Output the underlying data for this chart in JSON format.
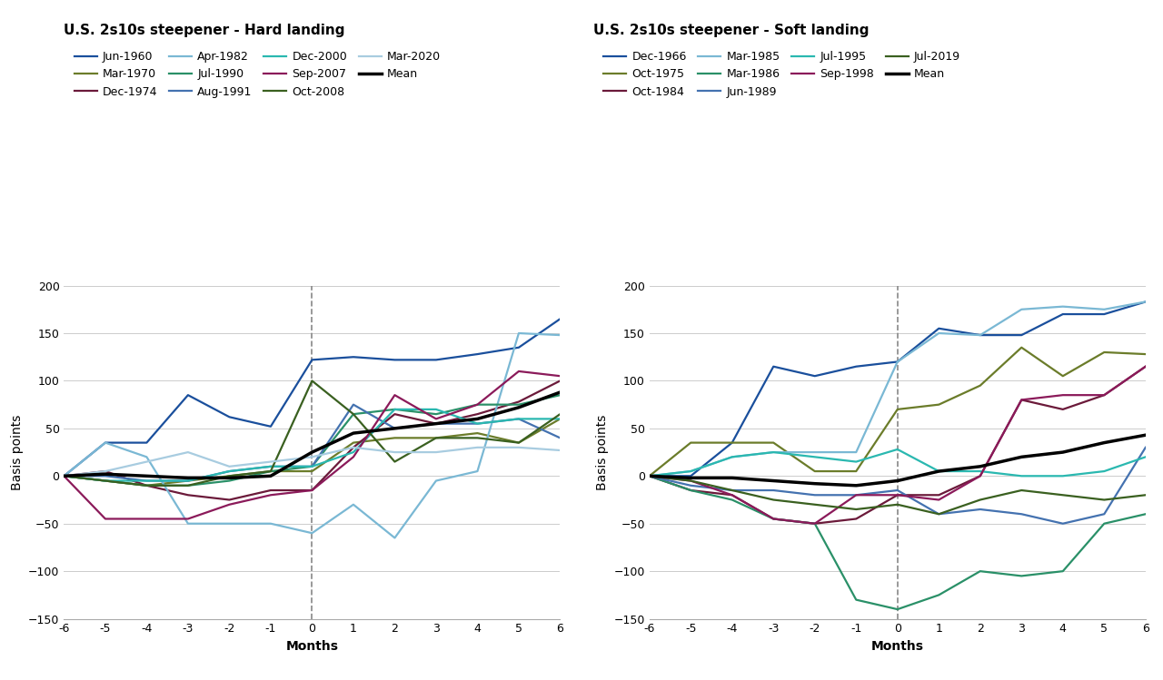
{
  "months": [
    -6,
    -5,
    -4,
    -3,
    -2,
    -1,
    0,
    1,
    2,
    3,
    4,
    5,
    6
  ],
  "hard_landing": {
    "Jun-1960": {
      "color": "#1a4f9c",
      "data": [
        0,
        35,
        35,
        85,
        62,
        52,
        122,
        125,
        122,
        122,
        128,
        135,
        165
      ]
    },
    "Mar-1970": {
      "color": "#6b7c2a",
      "data": [
        0,
        -5,
        -10,
        -5,
        0,
        5,
        5,
        35,
        40,
        40,
        45,
        35,
        60
      ]
    },
    "Dec-1974": {
      "color": "#6b1a3a",
      "data": [
        0,
        5,
        -10,
        -20,
        -25,
        -15,
        -15,
        30,
        65,
        55,
        65,
        78,
        100
      ]
    },
    "Apr-1982": {
      "color": "#7ab8d4",
      "data": [
        0,
        35,
        20,
        -50,
        -50,
        -50,
        -60,
        -30,
        -65,
        -5,
        5,
        150,
        148
      ]
    },
    "Jul-1990": {
      "color": "#2a9068",
      "data": [
        0,
        -5,
        -10,
        -10,
        -5,
        5,
        10,
        65,
        70,
        65,
        75,
        75,
        85
      ]
    },
    "Aug-1991": {
      "color": "#4472b0",
      "data": [
        0,
        0,
        -5,
        -5,
        5,
        10,
        10,
        75,
        50,
        55,
        55,
        60,
        40
      ]
    },
    "Dec-2000": {
      "color": "#2ab8b0",
      "data": [
        0,
        -5,
        -5,
        -5,
        5,
        10,
        10,
        25,
        70,
        70,
        55,
        60,
        60
      ]
    },
    "Sep-2007": {
      "color": "#8b1a5a",
      "data": [
        0,
        -45,
        -45,
        -45,
        -30,
        -20,
        -15,
        20,
        85,
        60,
        75,
        110,
        105
      ]
    },
    "Oct-2008": {
      "color": "#3a6020",
      "data": [
        0,
        -5,
        -10,
        -10,
        0,
        5,
        100,
        65,
        15,
        40,
        40,
        35,
        65
      ]
    },
    "Mar-2020": {
      "color": "#a8cce0",
      "data": [
        0,
        5,
        15,
        25,
        10,
        15,
        20,
        30,
        25,
        25,
        30,
        30,
        27
      ]
    },
    "Mean": {
      "color": "#000000",
      "data": [
        0,
        2,
        0,
        -2,
        -2,
        0,
        25,
        45,
        50,
        55,
        60,
        72,
        88
      ]
    }
  },
  "soft_landing": {
    "Dec-1966": {
      "color": "#1a4f9c",
      "data": [
        0,
        0,
        35,
        115,
        105,
        115,
        120,
        155,
        148,
        148,
        170,
        170,
        183
      ]
    },
    "Oct-1975": {
      "color": "#6b7c2a",
      "data": [
        0,
        35,
        35,
        35,
        5,
        5,
        70,
        75,
        95,
        135,
        105,
        130,
        128
      ]
    },
    "Oct-1984": {
      "color": "#6b1a3a",
      "data": [
        0,
        -15,
        -20,
        -45,
        -50,
        -45,
        -20,
        -20,
        0,
        80,
        70,
        85,
        115
      ]
    },
    "Mar-1985": {
      "color": "#7ab8d4",
      "data": [
        0,
        5,
        20,
        25,
        25,
        25,
        120,
        150,
        148,
        175,
        178,
        175,
        183
      ]
    },
    "Mar-1986": {
      "color": "#2a9068",
      "data": [
        0,
        -15,
        -25,
        -45,
        -50,
        -130,
        -140,
        -125,
        -100,
        -105,
        -100,
        -50,
        -40
      ]
    },
    "Jun-1989": {
      "color": "#4472b0",
      "data": [
        0,
        -10,
        -15,
        -15,
        -20,
        -20,
        -15,
        -40,
        -35,
        -40,
        -50,
        -40,
        30
      ]
    },
    "Jul-1995": {
      "color": "#2ab8b0",
      "data": [
        0,
        5,
        20,
        25,
        20,
        15,
        28,
        5,
        5,
        0,
        0,
        5,
        20
      ]
    },
    "Sep-1998": {
      "color": "#8b1a5a",
      "data": [
        0,
        -5,
        -20,
        -45,
        -50,
        -20,
        -20,
        -25,
        0,
        80,
        85,
        85,
        115
      ]
    },
    "Jul-2019": {
      "color": "#3a6020",
      "data": [
        0,
        -5,
        -15,
        -25,
        -30,
        -35,
        -30,
        -40,
        -25,
        -15,
        -20,
        -25,
        -20
      ]
    },
    "Mean": {
      "color": "#000000",
      "data": [
        0,
        -2,
        -2,
        -5,
        -8,
        -10,
        -5,
        5,
        10,
        20,
        25,
        35,
        43
      ]
    }
  },
  "hard_title": "U.S. 2s10s steepener - Hard landing",
  "soft_title": "U.S. 2s10s steepener - Soft landing",
  "hard_legend_order": [
    "Jun-1960",
    "Mar-1970",
    "Dec-1974",
    "Apr-1982",
    "Jul-1990",
    "Aug-1991",
    "Dec-2000",
    "Sep-2007",
    "Oct-2008",
    "Mar-2020",
    "Mean"
  ],
  "soft_legend_order": [
    "Dec-1966",
    "Oct-1975",
    "Oct-1984",
    "Mar-1985",
    "Mar-1986",
    "Jun-1989",
    "Jul-1995",
    "Sep-1998",
    "Jul-2019",
    "Mean"
  ],
  "ylabel": "Basis points",
  "xlabel": "Months",
  "ylim": [
    -150,
    200
  ],
  "xlim": [
    -6,
    6
  ],
  "bg_color": "#ffffff"
}
